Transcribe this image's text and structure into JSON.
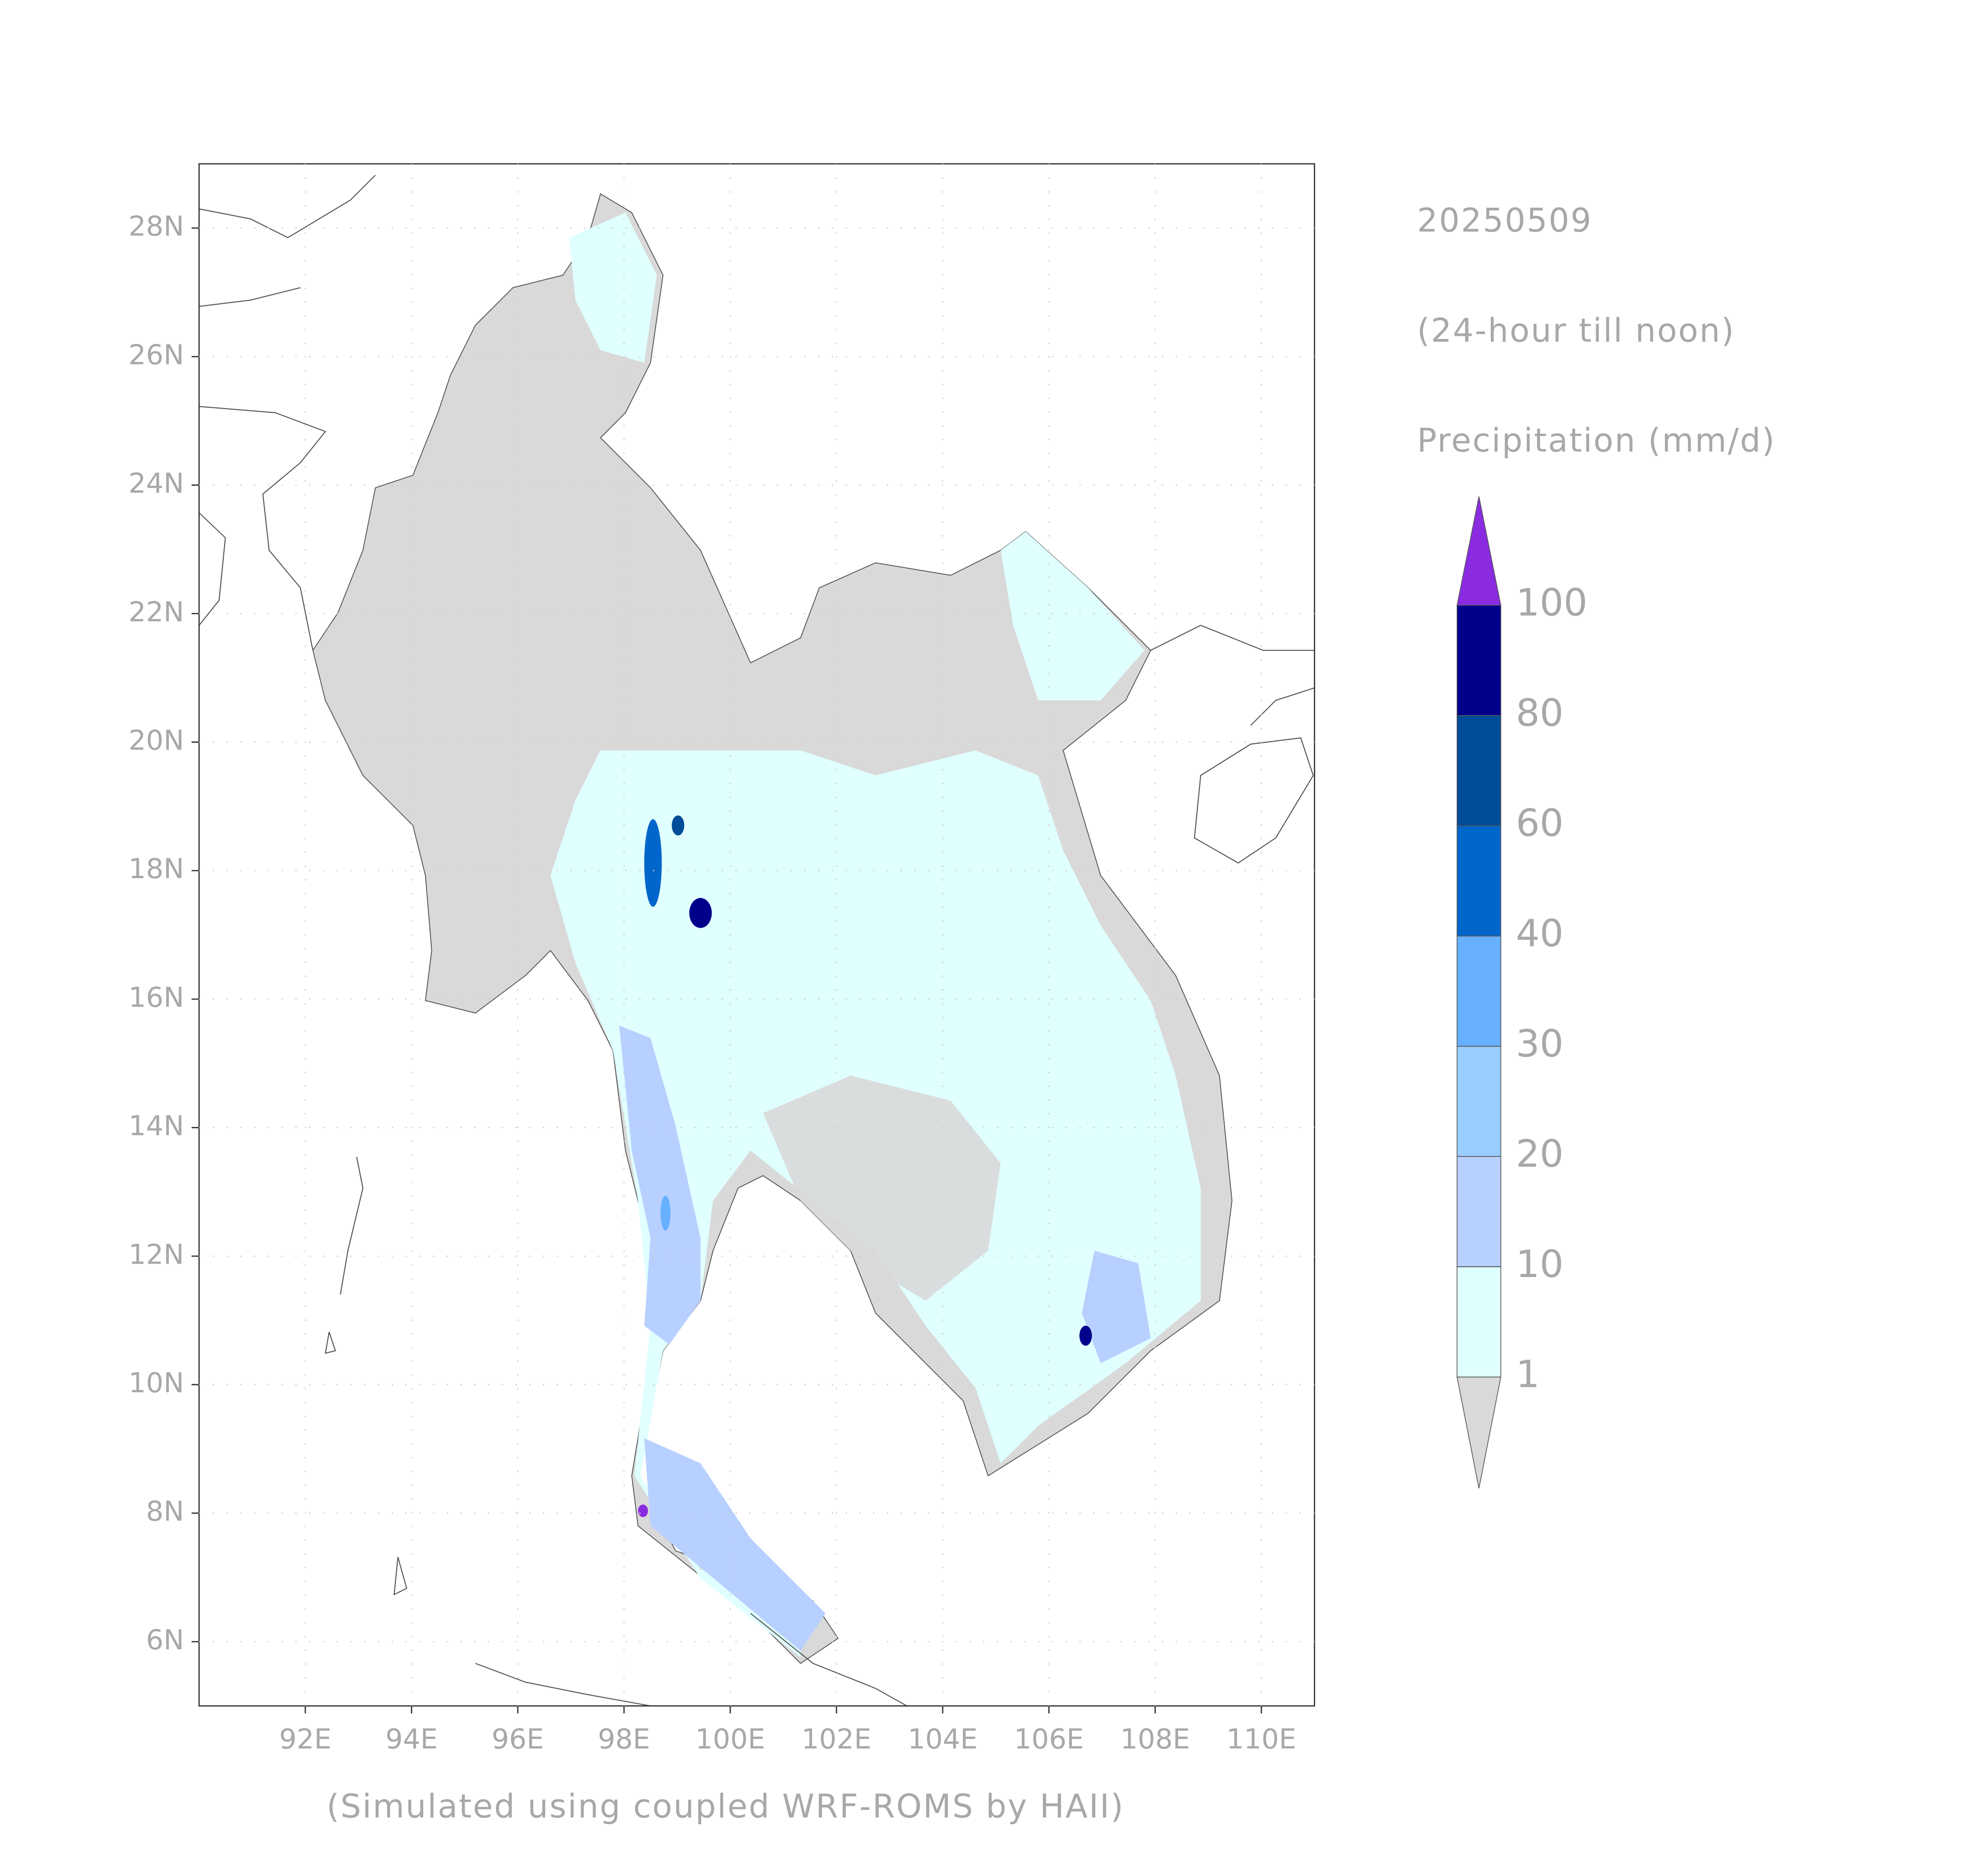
{
  "map": {
    "date": "20250509",
    "period": "(24-hour till noon)",
    "variable": "Precipitation (mm/d)",
    "credit": "(Simulated using coupled WRF-ROMS by HAII)",
    "xlim": [
      90,
      111
    ],
    "ylim": [
      5,
      29
    ],
    "xticks": [
      {
        "value": 92,
        "label": "92E"
      },
      {
        "value": 94,
        "label": "94E"
      },
      {
        "value": 96,
        "label": "96E"
      },
      {
        "value": 98,
        "label": "98E"
      },
      {
        "value": 100,
        "label": "100E"
      },
      {
        "value": 102,
        "label": "102E"
      },
      {
        "value": 104,
        "label": "104E"
      },
      {
        "value": 106,
        "label": "106E"
      },
      {
        "value": 108,
        "label": "108E"
      },
      {
        "value": 110,
        "label": "110E"
      }
    ],
    "yticks": [
      {
        "value": 6,
        "label": "6N"
      },
      {
        "value": 8,
        "label": "8N"
      },
      {
        "value": 10,
        "label": "10N"
      },
      {
        "value": 12,
        "label": "12N"
      },
      {
        "value": 14,
        "label": "14N"
      },
      {
        "value": 16,
        "label": "16N"
      },
      {
        "value": 18,
        "label": "18N"
      },
      {
        "value": 20,
        "label": "20N"
      },
      {
        "value": 22,
        "label": "22N"
      },
      {
        "value": 24,
        "label": "24N"
      },
      {
        "value": 26,
        "label": "26N"
      },
      {
        "value": 28,
        "label": "28N"
      }
    ],
    "grid": true,
    "colorbar": {
      "levels": [
        1,
        10,
        20,
        30,
        40,
        60,
        80,
        100
      ],
      "colors": [
        "#d9d9d9",
        "#e0ffff",
        "#b8d0ff",
        "#99ccff",
        "#66b0ff",
        "#0066cc",
        "#004c99",
        "#00008b",
        "#8a2be2"
      ]
    }
  }
}
